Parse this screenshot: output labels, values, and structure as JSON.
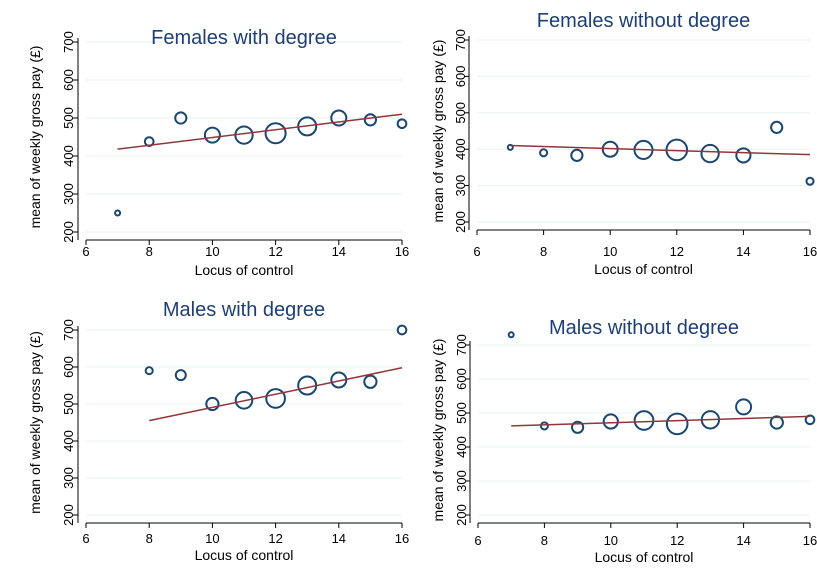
{
  "figure": {
    "colors": {
      "marker_edge": "#1a476f",
      "fit_line": "#90353b",
      "grid": "#eaf2f3",
      "title": "#1f3f73"
    }
  },
  "chart_data": [
    {
      "type": "scatter",
      "title": "Females with degree",
      "xlabel": "Locus of control",
      "ylabel": "mean of weekly gross pay (£)",
      "xlim": [
        6,
        16
      ],
      "ylim": [
        200,
        700
      ],
      "xticks": [
        "6",
        "8",
        "10",
        "12",
        "14",
        "16"
      ],
      "yticks": [
        "200",
        "300",
        "400",
        "500",
        "600",
        "700"
      ],
      "grid": true,
      "marker": "hollow circle, size proportional to weight",
      "x": [
        7,
        8,
        9,
        10,
        11,
        12,
        13,
        14,
        15,
        16
      ],
      "y": [
        250,
        438,
        500,
        455,
        455,
        460,
        478,
        500,
        495,
        485
      ],
      "marker_weight": [
        1,
        3,
        5,
        9,
        12,
        16,
        13,
        9,
        5,
        3
      ],
      "fit_line": {
        "x": [
          7,
          16
        ],
        "y": [
          418,
          510
        ]
      }
    },
    {
      "type": "scatter",
      "title": "Females without degree",
      "xlabel": "Locus of control",
      "ylabel": "mean of weekly gross pay (£)",
      "xlim": [
        6,
        16
      ],
      "ylim": [
        200,
        700
      ],
      "xticks": [
        "6",
        "8",
        "10",
        "12",
        "14",
        "16"
      ],
      "yticks": [
        "200",
        "300",
        "400",
        "500",
        "600",
        "700"
      ],
      "grid": true,
      "marker": "hollow circle, size proportional to weight",
      "x": [
        7,
        8,
        9,
        10,
        11,
        12,
        13,
        14,
        15,
        16
      ],
      "y": [
        405,
        390,
        383,
        400,
        398,
        398,
        388,
        383,
        460,
        312
      ],
      "marker_weight": [
        1,
        2,
        5,
        9,
        13,
        17,
        12,
        8,
        5,
        2
      ],
      "fit_line": {
        "x": [
          7,
          16
        ],
        "y": [
          410,
          385
        ]
      }
    },
    {
      "type": "scatter",
      "title": "Males with degree",
      "xlabel": "Locus of control",
      "ylabel": "mean of weekly gross pay (£)",
      "xlim": [
        6,
        16
      ],
      "ylim": [
        200,
        700
      ],
      "xticks": [
        "6",
        "8",
        "10",
        "12",
        "14",
        "16"
      ],
      "yticks": [
        "200",
        "300",
        "400",
        "500",
        "600",
        "700"
      ],
      "grid": true,
      "marker": "hollow circle, size proportional to weight",
      "x": [
        8,
        9,
        10,
        11,
        12,
        13,
        14,
        15,
        16
      ],
      "y": [
        590,
        578,
        500,
        510,
        515,
        550,
        565,
        560,
        700
      ],
      "marker_weight": [
        2,
        4,
        6,
        11,
        14,
        13,
        9,
        6,
        3
      ],
      "fit_line": {
        "x": [
          8,
          16
        ],
        "y": [
          455,
          598
        ]
      }
    },
    {
      "type": "scatter",
      "title": "Males without degree",
      "xlabel": "Locus of control",
      "ylabel": "mean of weekly gross pay (£)",
      "xlim": [
        6,
        16
      ],
      "ylim": [
        200,
        700
      ],
      "xticks": [
        "6",
        "8",
        "10",
        "12",
        "14",
        "16"
      ],
      "yticks": [
        "200",
        "300",
        "400",
        "500",
        "600",
        "700"
      ],
      "grid": true,
      "marker": "hollow circle, size proportional to weight",
      "x": [
        7,
        8,
        9,
        10,
        11,
        12,
        13,
        14,
        15,
        16
      ],
      "y": [
        730,
        462,
        458,
        475,
        478,
        468,
        480,
        518,
        472,
        480
      ],
      "marker_weight": [
        1,
        2,
        5,
        8,
        14,
        17,
        12,
        9,
        6,
        3
      ],
      "fit_line": {
        "x": [
          7,
          16
        ],
        "y": [
          462,
          490
        ]
      }
    }
  ]
}
